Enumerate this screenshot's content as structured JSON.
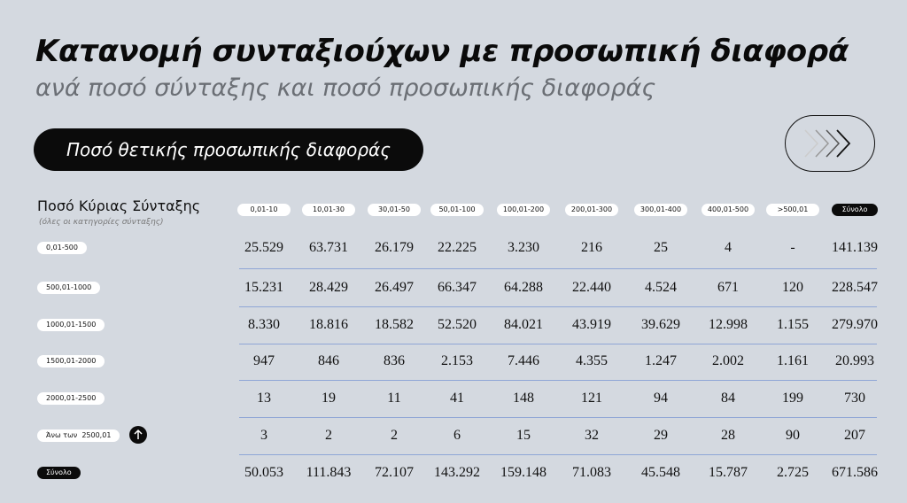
{
  "header": {
    "title": "Κατανομή συνταξιούχων με προσωπική διαφορά",
    "subtitle": "ανά ποσό σύνταξης και ποσό προσωπικής διαφοράς"
  },
  "tab": {
    "label": "Ποσό θετικής προσωπικής διαφοράς"
  },
  "table": {
    "row_header": "Ποσό Κύριας Σύνταξης",
    "row_header_note": "(όλες οι κατηγορίες σύνταξης)",
    "columns": [
      "0,01-10",
      "10,01-30",
      "30,01-50",
      "50,01-100",
      "100,01-200",
      "200,01-300",
      "300,01-400",
      "400,01-500",
      ">500,01",
      "Σύνολο"
    ],
    "rows": [
      {
        "label": "0,01-500",
        "cells": [
          "25.529",
          "63.731",
          "26.179",
          "22.225",
          "3.230",
          "216",
          "25",
          "4",
          "-",
          "141.139"
        ]
      },
      {
        "label": "500,01-1000",
        "cells": [
          "15.231",
          "28.429",
          "26.497",
          "66.347",
          "64.288",
          "22.440",
          "4.524",
          "671",
          "120",
          "228.547"
        ]
      },
      {
        "label": "1000,01-1500",
        "cells": [
          "8.330",
          "18.816",
          "18.582",
          "52.520",
          "84.021",
          "43.919",
          "39.629",
          "12.998",
          "1.155",
          "279.970"
        ]
      },
      {
        "label": "1500,01-2000",
        "cells": [
          "947",
          "846",
          "836",
          "2.153",
          "7.446",
          "4.355",
          "1.247",
          "2.002",
          "1.161",
          "20.993"
        ]
      },
      {
        "label": "2000,01-2500",
        "cells": [
          "13",
          "19",
          "11",
          "41",
          "148",
          "121",
          "94",
          "84",
          "199",
          "730"
        ]
      },
      {
        "label": "Άνω των  2500,01",
        "cells": [
          "3",
          "2",
          "2",
          "6",
          "15",
          "32",
          "29",
          "28",
          "90",
          "207"
        ]
      },
      {
        "label": "Σύνολο",
        "cells": [
          "50.053",
          "111.843",
          "72.107",
          "143.292",
          "159.148",
          "71.083",
          "45.548",
          "15.787",
          "2.725",
          "671.586"
        ]
      }
    ]
  }
}
